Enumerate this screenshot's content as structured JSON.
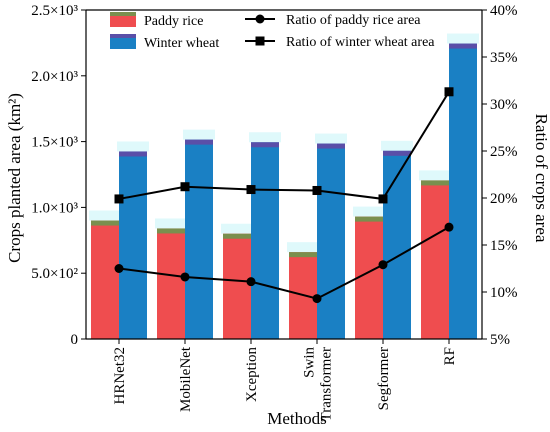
{
  "chart_data": {
    "type": "bar",
    "categories": [
      {
        "lines": [
          "HRNet32"
        ]
      },
      {
        "lines": [
          "MobileNet"
        ]
      },
      {
        "lines": [
          "Xception"
        ]
      },
      {
        "lines": [
          "Swin",
          "Transformer"
        ]
      },
      {
        "lines": [
          "Segformer"
        ]
      },
      {
        "lines": [
          "RF"
        ]
      }
    ],
    "xlabel": "Methods",
    "ylabel_left": "Crops planted area (km²)",
    "ylabel_right": "Ratio of crops area",
    "ylim_left": [
      0,
      2500
    ],
    "ylim_right": [
      5,
      40
    ],
    "left_ticks": [
      {
        "value": 0,
        "label": "0"
      },
      {
        "value": 500,
        "label": "5.0×10²"
      },
      {
        "value": 1000,
        "label": "1.0×10³"
      },
      {
        "value": 1500,
        "label": "1.5×10³"
      },
      {
        "value": 2000,
        "label": "2.0×10³"
      },
      {
        "value": 2500,
        "label": "2.5×10³"
      }
    ],
    "right_ticks": [
      {
        "value": 5,
        "label": "5%"
      },
      {
        "value": 10,
        "label": "10%"
      },
      {
        "value": 15,
        "label": "15%"
      },
      {
        "value": 20,
        "label": "20%"
      },
      {
        "value": 25,
        "label": "25%"
      },
      {
        "value": 30,
        "label": "30%"
      },
      {
        "value": 35,
        "label": "35%"
      },
      {
        "value": 40,
        "label": "40%"
      }
    ],
    "bar_series": [
      {
        "name": "Paddy rice",
        "color": "#ef4d4f",
        "top_color": "#7a8f4e",
        "values": [
          900,
          840,
          800,
          660,
          930,
          1205
        ]
      },
      {
        "name": "Winter wheat",
        "color": "#1a80c4",
        "top_color": "#5a4fa8",
        "values": [
          1425,
          1515,
          1495,
          1485,
          1430,
          2245
        ]
      }
    ],
    "line_series": [
      {
        "name": "Ratio of paddy rice area",
        "axis": "right",
        "marker": "circle",
        "values": [
          12.5,
          11.6,
          11.1,
          9.3,
          12.9,
          16.9
        ]
      },
      {
        "name": "Ratio of winter wheat area",
        "axis": "right",
        "marker": "square",
        "values": [
          19.9,
          21.2,
          20.9,
          20.8,
          19.9,
          31.3
        ]
      }
    ],
    "legend": "top"
  }
}
